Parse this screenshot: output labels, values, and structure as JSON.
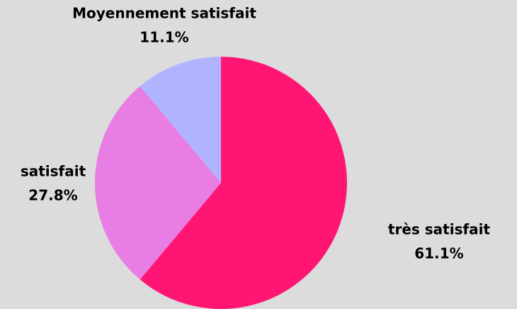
{
  "chart_data": {
    "type": "pie",
    "categories": [
      "très satisfait",
      "satisfait",
      "Moyennement satisfait"
    ],
    "values": [
      61.1,
      27.8,
      11.1
    ],
    "value_labels": [
      "61.1%",
      "27.8%",
      "11.1%"
    ],
    "colors": [
      "#ff1675",
      "#e87de3",
      "#b0b4ff"
    ],
    "start": "top",
    "direction": "clockwise"
  }
}
